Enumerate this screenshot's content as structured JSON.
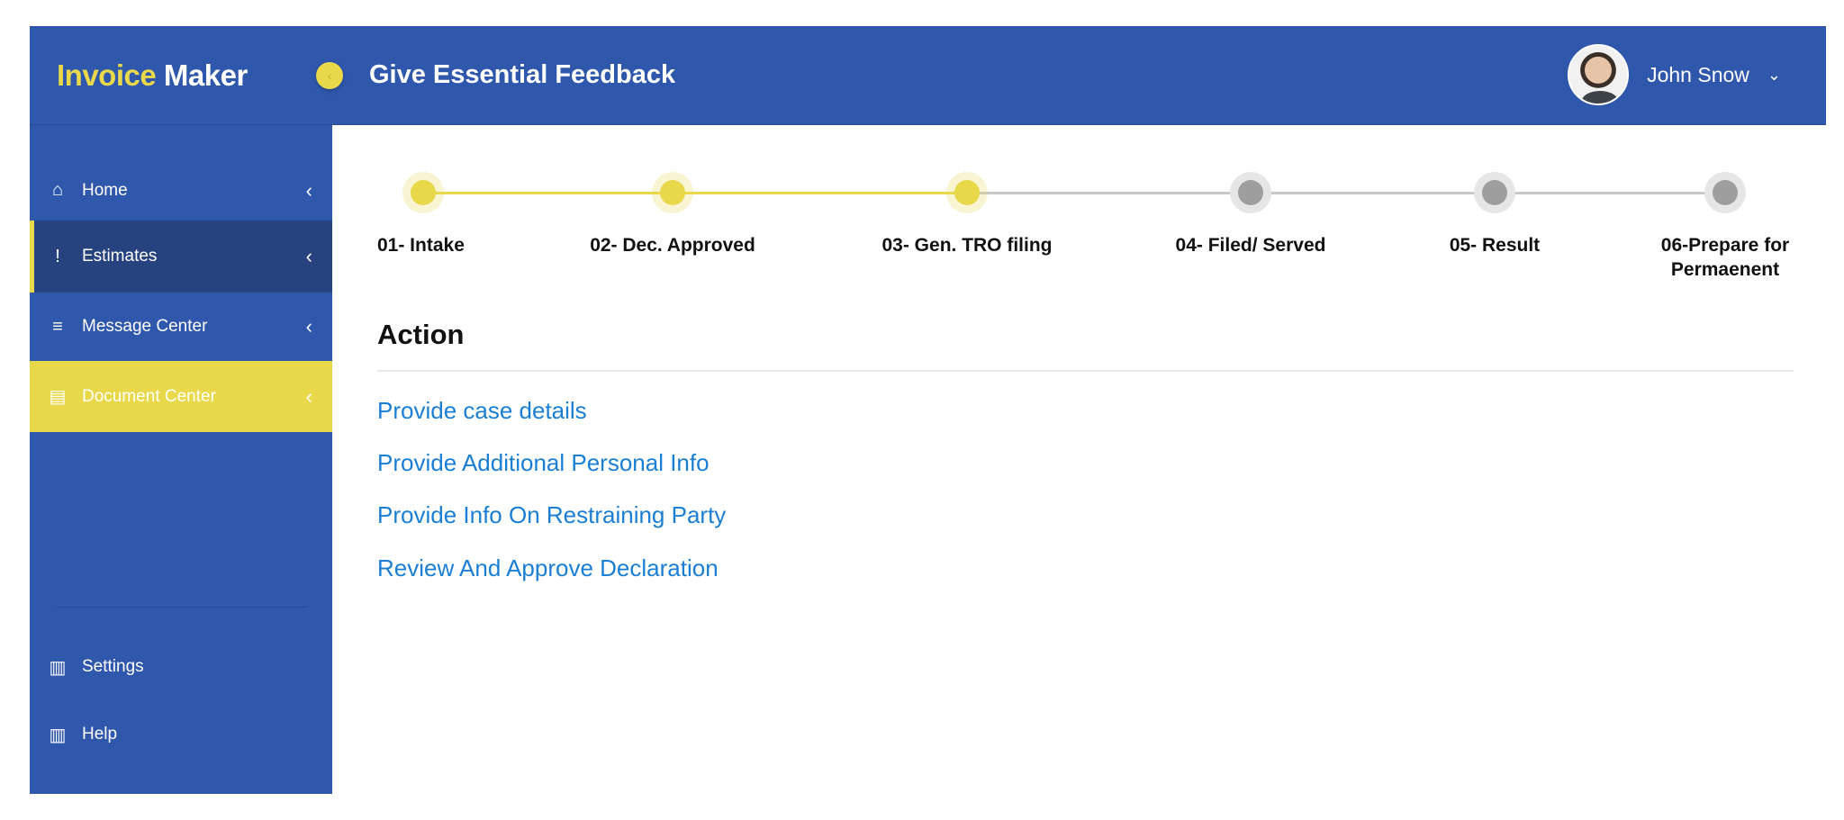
{
  "header": {
    "logo_part1": "Invoice",
    "logo_part2": "Maker",
    "toggle_icon": "chevron-left-icon",
    "title": "Give Essential Feedback",
    "user_name": "John Snow",
    "user_chevron": "⌄"
  },
  "sidebar": {
    "items": [
      {
        "label": "Home",
        "icon": "home-icon",
        "glyph": "⌂",
        "arrow": "‹"
      },
      {
        "label": "Estimates",
        "icon": "alert-comment-icon",
        "glyph": "!",
        "arrow": "‹"
      },
      {
        "label": "Message Center",
        "icon": "message-icon",
        "glyph": "≡",
        "arrow": "‹"
      },
      {
        "label": "Document Center",
        "icon": "document-icon",
        "glyph": "▤",
        "arrow": "‹"
      }
    ],
    "bottom": [
      {
        "label": "Settings",
        "icon": "clipboard-icon",
        "glyph": "▥"
      },
      {
        "label": "Help",
        "icon": "clipboard-icon",
        "glyph": "▥"
      }
    ]
  },
  "steps": [
    {
      "label": "01- Intake",
      "status": "done"
    },
    {
      "label": "02- Dec. Approved",
      "status": "done"
    },
    {
      "label": "03- Gen. TRO filing",
      "status": "done"
    },
    {
      "label": "04- Filed/ Served",
      "status": "todo"
    },
    {
      "label": "05- Result",
      "status": "todo"
    },
    {
      "label": "06-Prepare for Permaenent",
      "status": "todo"
    }
  ],
  "action": {
    "title": "Action",
    "links": [
      "Provide case details",
      "Provide Additional Personal Info",
      "Provide Info On Restraining Party",
      "Review And Approve Declaration"
    ]
  },
  "colors": {
    "primary": "#2f57ab",
    "accent": "#e8d84a",
    "active": "#26427f",
    "link": "#1a7fd4",
    "pending": "#9e9e9e"
  }
}
